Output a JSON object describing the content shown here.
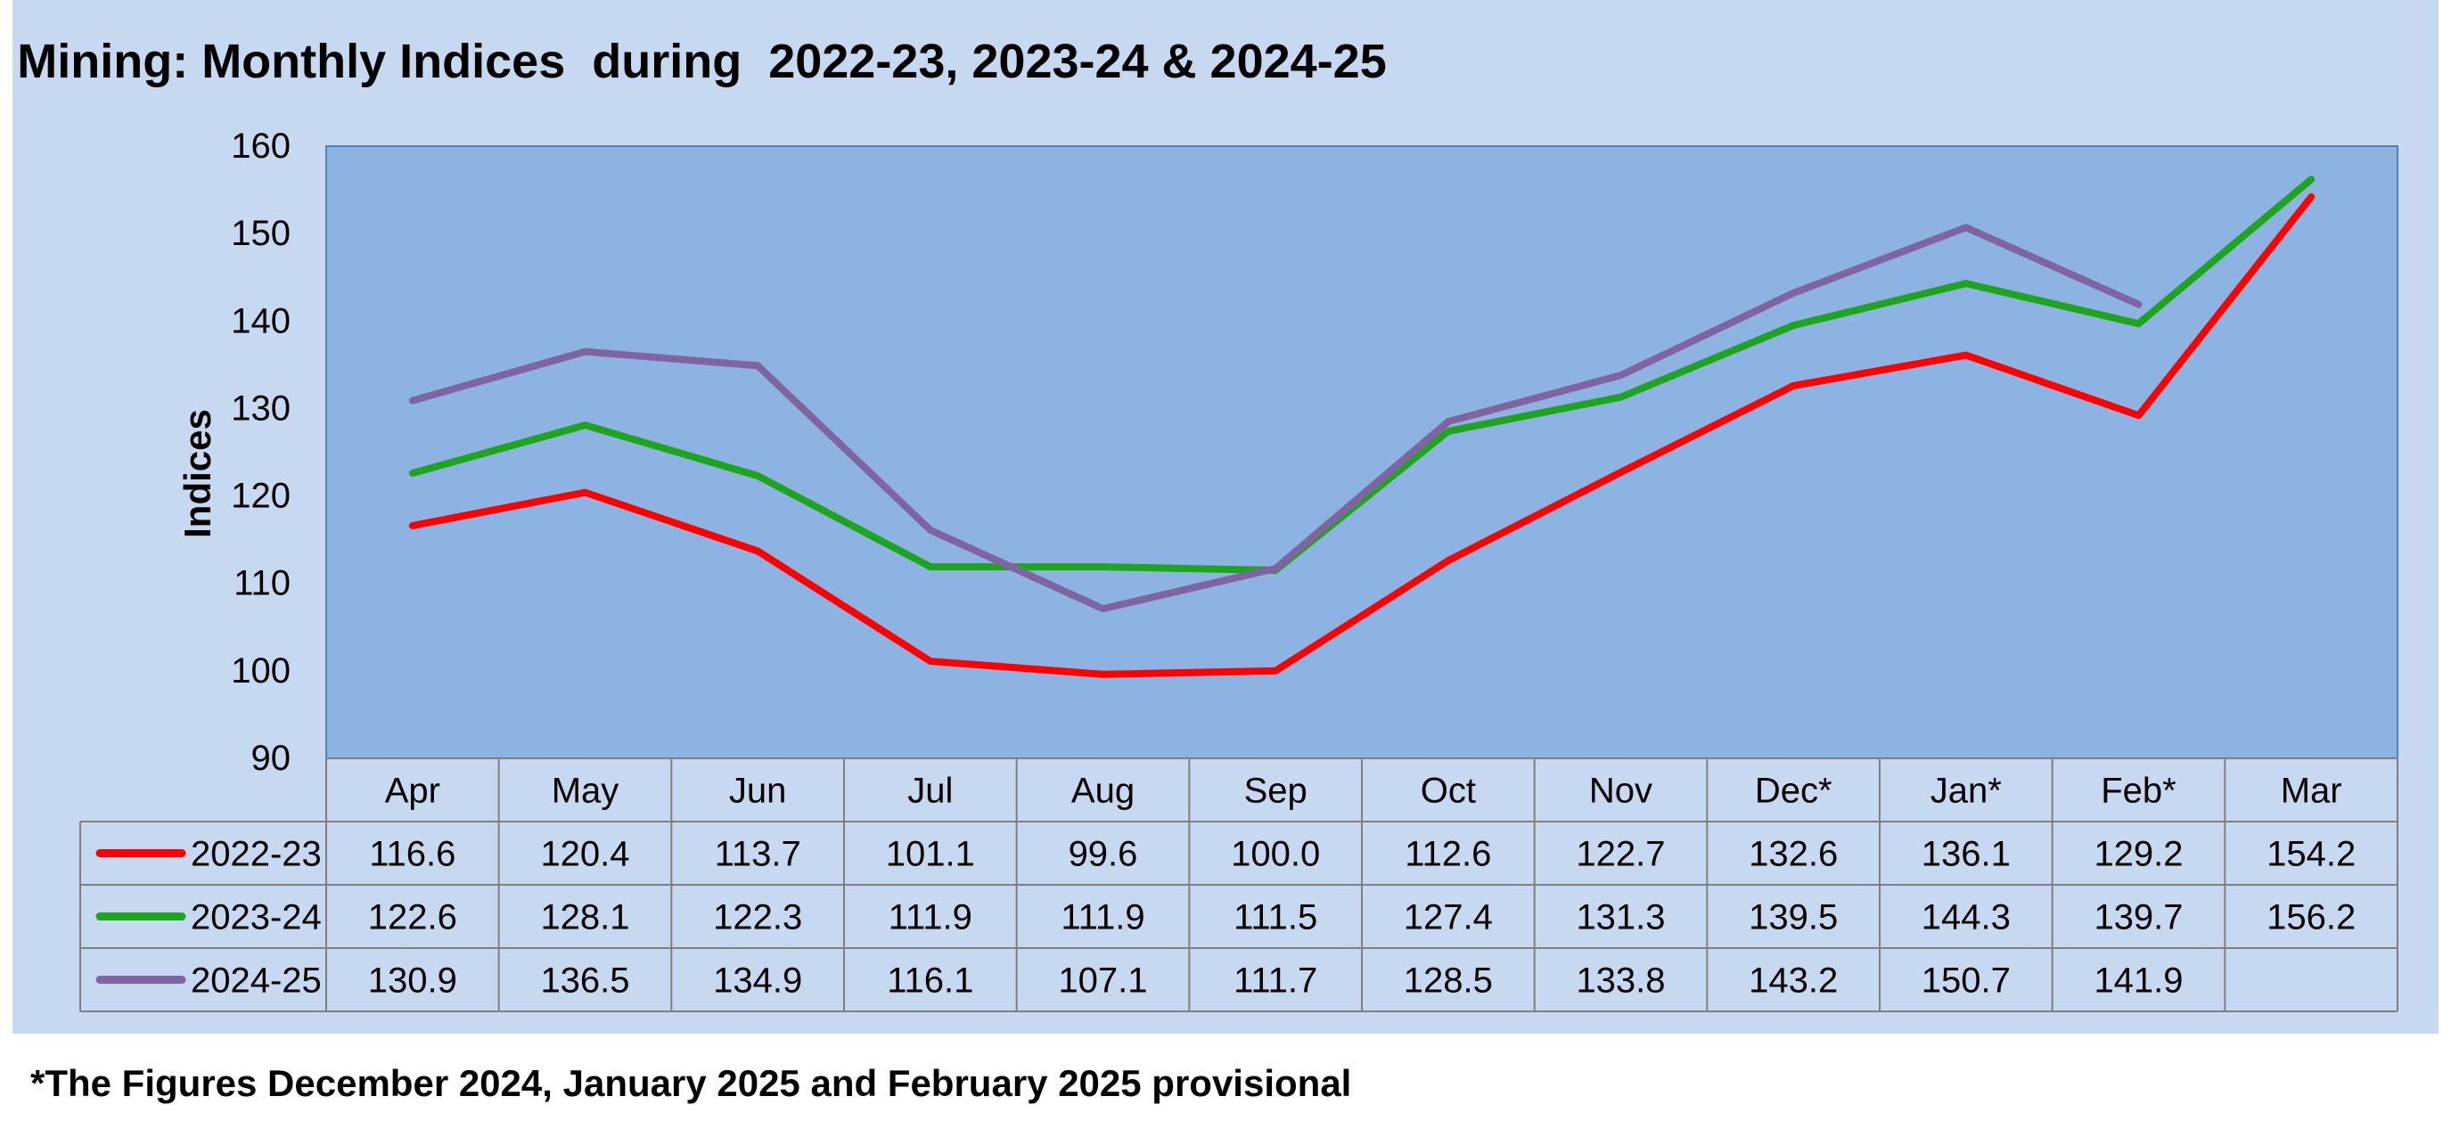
{
  "chart_data": {
    "type": "line",
    "title": "Mining: Monthly Indices  during  2022-23, 2023-24 & 2024-25",
    "xlabel": "",
    "ylabel": "Indices",
    "ylim": [
      90,
      160
    ],
    "yticks": [
      90,
      100,
      110,
      120,
      130,
      140,
      150,
      160
    ],
    "categories": [
      "Apr",
      "May",
      "Jun",
      "Jul",
      "Aug",
      "Sep",
      "Oct",
      "Nov",
      "Dec*",
      "Jan*",
      "Feb*",
      "Mar"
    ],
    "grid": false,
    "legend": "data-table-left",
    "series": [
      {
        "name": "2022-23",
        "color": "#ff0000",
        "values": [
          116.6,
          120.4,
          113.7,
          101.1,
          99.6,
          100.0,
          112.6,
          122.7,
          132.6,
          136.1,
          129.2,
          154.2
        ],
        "labels": [
          "116.6",
          "120.4",
          "113.7",
          "101.1",
          "99.6",
          "100.0",
          "112.6",
          "122.7",
          "132.6",
          "136.1",
          "129.2",
          "154.2"
        ]
      },
      {
        "name": "2023-24",
        "color": "#1ea51e",
        "values": [
          122.6,
          128.1,
          122.3,
          111.9,
          111.9,
          111.5,
          127.4,
          131.3,
          139.5,
          144.3,
          139.7,
          156.2
        ],
        "labels": [
          "122.6",
          "128.1",
          "122.3",
          "111.9",
          "111.9",
          "111.5",
          "127.4",
          "131.3",
          "139.5",
          "144.3",
          "139.7",
          "156.2"
        ]
      },
      {
        "name": "2024-25",
        "color": "#8064a2",
        "values": [
          130.9,
          136.5,
          134.9,
          116.1,
          107.1,
          111.7,
          128.5,
          133.8,
          143.2,
          150.7,
          141.9,
          null
        ],
        "labels": [
          "130.9",
          "136.5",
          "134.9",
          "116.1",
          "107.1",
          "111.7",
          "128.5",
          "133.8",
          "143.2",
          "150.7",
          "141.9",
          ""
        ]
      }
    ]
  },
  "colors": {
    "panel_background": "#c6d9f0",
    "plot_background": "#8db3e2",
    "plot_border": "#4f81bd",
    "table_border": "#7f7f7f"
  },
  "footnote": "*The Figures December 2024, January 2025 and February 2025 provisional"
}
